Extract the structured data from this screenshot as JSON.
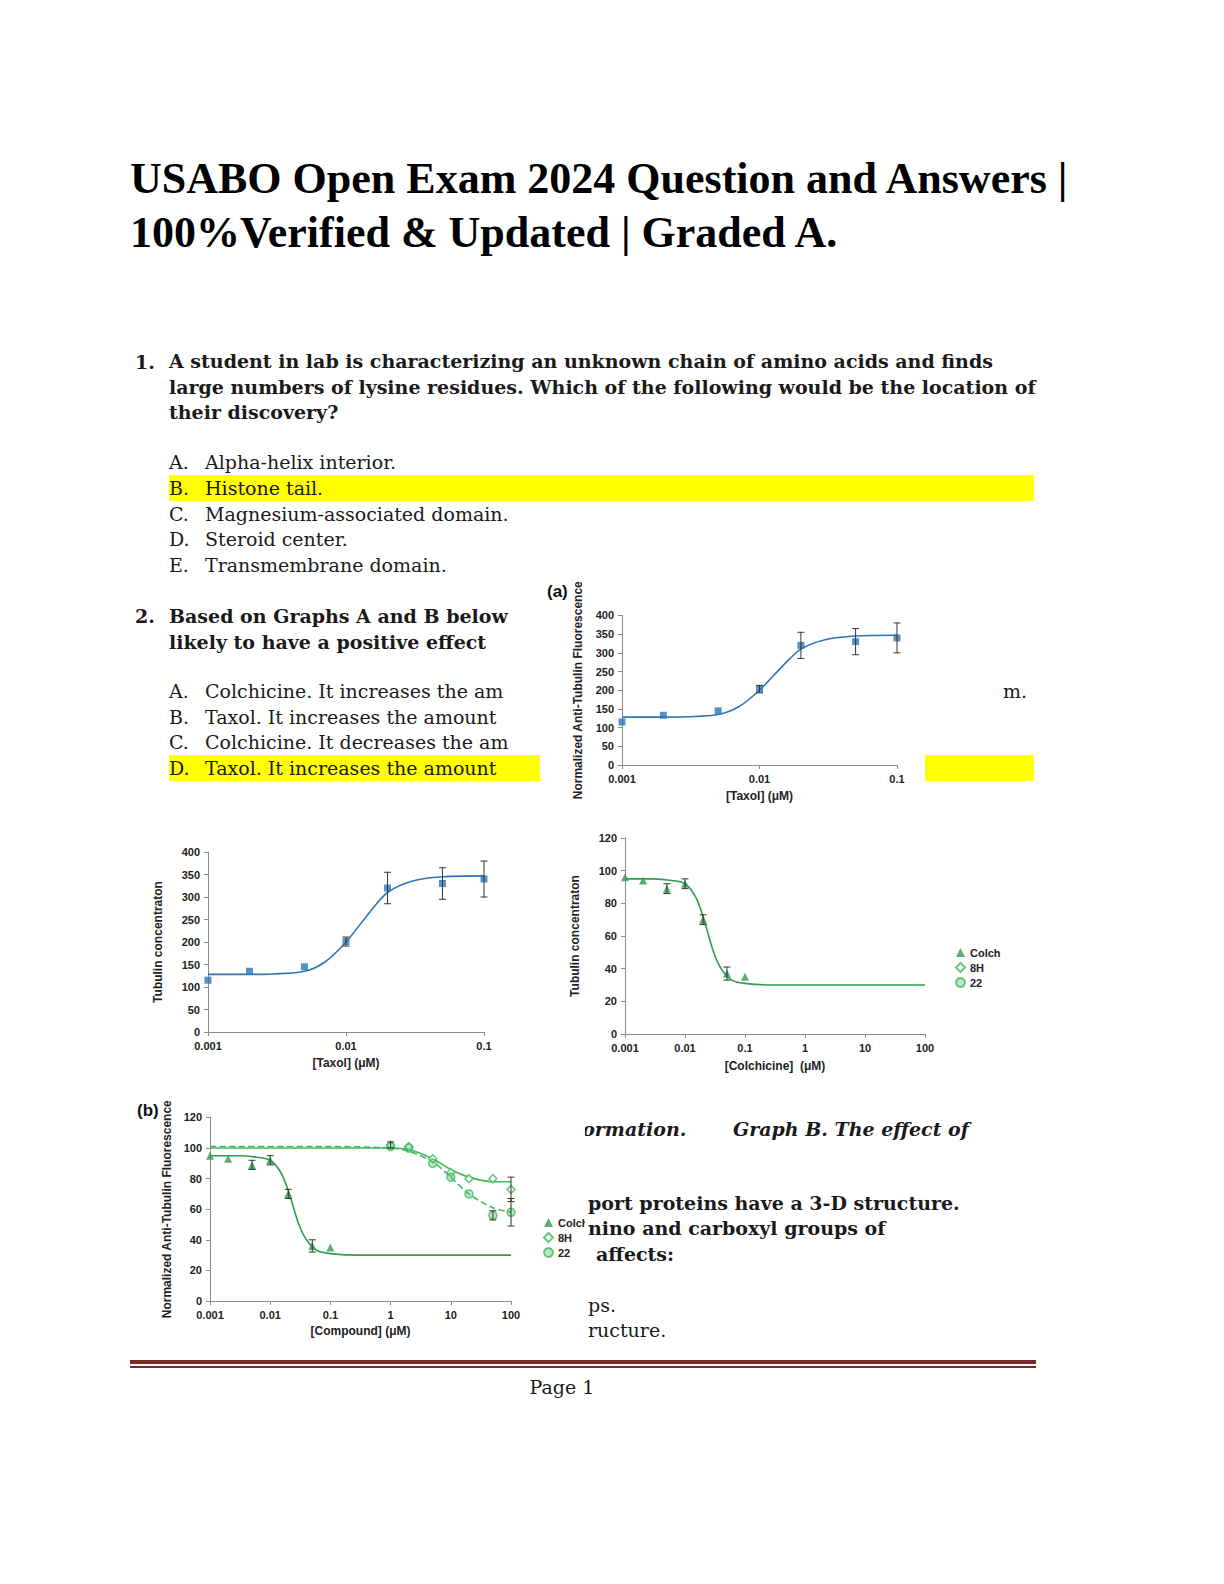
{
  "document": {
    "header": {
      "title": "USABO Open Exam 2024 Question and Answers | 100%Verified & Updated | Graded A."
    },
    "questions": [
      {
        "number": "1.",
        "text": "A student in lab is characterizing an unknown chain of amino acids and finds large numbers of lysine residues. Which of the following would be the location of their discovery?",
        "options": [
          {
            "letter": "A.",
            "text": "Alpha-helix interior."
          },
          {
            "letter": "B.",
            "text": "Histone tail."
          },
          {
            "letter": "C.",
            "text": "Magnesium-associated domain."
          },
          {
            "letter": "D.",
            "text": "Steroid center."
          },
          {
            "letter": "E.",
            "text": "Transmembrane domain."
          }
        ],
        "answer": "B."
      },
      {
        "number": "2.",
        "text_lines": [
          "Based on Graphs A and B below",
          "likely to have a positive effect"
        ],
        "options": [
          {
            "letter": "A.",
            "text": "Colchicine. It increases the am",
            "right_fragment": "m."
          },
          {
            "letter": "B.",
            "text": "Taxol. It increases the amount"
          },
          {
            "letter": "C.",
            "text": "Colchicine. It decreases the am"
          },
          {
            "letter": "D.",
            "text": "Taxol. It increases the amount"
          }
        ],
        "answer": "D."
      }
    ],
    "caption_fragments": [
      "formation.",
      "Graph B. The effect of"
    ],
    "question_3_fragments": {
      "bold": [
        "port proteins have a 3-D structure.",
        "nino and carboxyl groups of",
        "affects:"
      ],
      "regular": [
        "ps.",
        "ructure."
      ]
    },
    "footer": {
      "page": "Page 1"
    }
  },
  "chart_data": [
    {
      "type": "scatter",
      "title": "(a)",
      "x_label": "[Taxol] (μM)",
      "y_label": "Normalized Anti-Tubulin Fluorescence",
      "log": "x",
      "xlim": [
        0.001,
        0.1
      ],
      "xticks": [
        0.001,
        0.01,
        0.1
      ],
      "ylim": [
        0,
        400
      ],
      "yticks": [
        0,
        50,
        100,
        150,
        200,
        250,
        300,
        350,
        400
      ],
      "grid": false,
      "series": [
        {
          "color": "#2e75b6",
          "marker": "square",
          "x": [
            0.001,
            0.002,
            0.005,
            0.01,
            0.02,
            0.05,
            0.1
          ],
          "values": [
            115,
            133,
            145,
            203,
            320,
            330,
            340
          ],
          "errors": [
            null,
            null,
            null,
            10,
            35,
            35,
            40
          ],
          "fit": {
            "line_style": "solid",
            "x": [
              0.001,
              0.002,
              0.003,
              0.005,
              0.007,
              0.01,
              0.015,
              0.02,
              0.03,
              0.05,
              0.1
            ],
            "values": [
              128,
              128,
              129,
              135,
              155,
              200,
              268,
              310,
              335,
              345,
              347
            ]
          }
        }
      ]
    },
    {
      "type": "scatter",
      "x_label": "[Taxol] (μM)",
      "y_label": "Tubulin concentraton",
      "log": "x",
      "xlim": [
        0.001,
        0.1
      ],
      "xticks": [
        0.001,
        0.01,
        0.1
      ],
      "ylim": [
        0,
        400
      ],
      "yticks": [
        0,
        50,
        100,
        150,
        200,
        250,
        300,
        350,
        400
      ],
      "grid": false,
      "series": [
        {
          "color": "#2e75b6",
          "marker": "square",
          "x": [
            0.001,
            0.002,
            0.005,
            0.01,
            0.02,
            0.05,
            0.1
          ],
          "values": [
            115,
            135,
            145,
            201,
            320,
            330,
            340
          ],
          "errors": [
            null,
            null,
            null,
            10,
            35,
            35,
            40
          ],
          "fit": {
            "line_style": "solid",
            "x": [
              0.001,
              0.002,
              0.003,
              0.005,
              0.007,
              0.01,
              0.015,
              0.02,
              0.03,
              0.05,
              0.1
            ],
            "values": [
              128,
              128,
              129,
              135,
              155,
              200,
              268,
              310,
              335,
              345,
              347
            ]
          }
        }
      ]
    },
    {
      "type": "scatter",
      "x_label": "[Colchicine]  (μM)",
      "y_label": "Tubulin concentraton",
      "log": "x",
      "xlim": [
        0.001,
        100
      ],
      "xticks": [
        0.001,
        0.01,
        0.1,
        1,
        10,
        100
      ],
      "ylim": [
        0,
        120
      ],
      "yticks": [
        0,
        20,
        40,
        60,
        80,
        100,
        120
      ],
      "grid": false,
      "legend": "right",
      "series": [
        {
          "name": "Colch",
          "color": "#2e9e4f",
          "marker": "triangle",
          "x": [
            0.001,
            0.002,
            0.005,
            0.01,
            0.02,
            0.05,
            0.1
          ],
          "values": [
            96,
            94,
            89,
            92,
            70,
            37,
            35
          ],
          "errors": [
            null,
            null,
            3,
            3,
            3,
            4,
            null
          ],
          "fit": {
            "line_style": "solid",
            "x": [
              0.001,
              0.003,
              0.006,
              0.01,
              0.015,
              0.02,
              0.03,
              0.04,
              0.06,
              0.1,
              0.3,
              1,
              10,
              100
            ],
            "values": [
              95,
              95,
              94,
              92,
              84,
              72,
              50,
              40,
              33,
              31,
              30,
              30,
              30,
              30
            ]
          }
        },
        {
          "name": "8H",
          "color": "#45b862",
          "marker": "open_diamond",
          "x": [],
          "values": []
        },
        {
          "name": "22",
          "color": "#45b862",
          "marker": "circle",
          "x": [],
          "values": []
        }
      ]
    },
    {
      "type": "scatter",
      "title": "(b)",
      "x_label": "[Compound] (μM)",
      "y_label": "Normalized Anti-Tubulin Fluorescence",
      "log": "x",
      "xlim": [
        0.001,
        100
      ],
      "xticks": [
        0.001,
        0.01,
        0.1,
        1,
        10,
        100
      ],
      "ylim": [
        0,
        120
      ],
      "yticks": [
        0,
        20,
        40,
        60,
        80,
        100,
        120
      ],
      "grid": false,
      "legend": "right",
      "series": [
        {
          "name": "Colch",
          "color": "#2e9e4f",
          "marker": "triangle",
          "x": [
            0.001,
            0.002,
            0.005,
            0.01,
            0.02,
            0.05,
            0.1
          ],
          "values": [
            95,
            93,
            89,
            92,
            70,
            36,
            35
          ],
          "errors": [
            null,
            null,
            3,
            3,
            3,
            4,
            null
          ],
          "fit": {
            "line_style": "solid",
            "x": [
              0.001,
              0.003,
              0.006,
              0.01,
              0.015,
              0.02,
              0.03,
              0.04,
              0.06,
              0.1,
              0.3,
              1,
              10,
              100
            ],
            "values": [
              95,
              95,
              94,
              92,
              84,
              72,
              50,
              40,
              33,
              31,
              30,
              30,
              30,
              30
            ]
          }
        },
        {
          "name": "8H",
          "color": "#45b862",
          "marker": "open_diamond",
          "x": [
            1,
            2,
            5,
            10,
            20,
            50,
            100
          ],
          "values": [
            102,
            101,
            93,
            84,
            80,
            80,
            73
          ],
          "errors": [
            2,
            null,
            null,
            null,
            null,
            null,
            8
          ],
          "fit": {
            "line_style": "solid",
            "x": [
              0.001,
              0.1,
              1,
              2,
              5,
              10,
              20,
              50,
              100
            ],
            "values": [
              100,
              100,
              100,
              99,
              93,
              86,
              81,
              78,
              78
            ]
          }
        },
        {
          "name": "22",
          "color": "#45b862",
          "marker": "circle",
          "x": [
            1,
            2,
            5,
            10,
            20,
            50,
            100
          ],
          "values": [
            101,
            100,
            90,
            81,
            70,
            56,
            58
          ],
          "errors": [
            null,
            null,
            null,
            null,
            null,
            3,
            9
          ],
          "fit": {
            "line_style": "dashed",
            "x": [
              0.001,
              0.1,
              1,
              2,
              5,
              10,
              20,
              50,
              100
            ],
            "values": [
              101,
              101,
              100,
              98,
              91,
              81,
              70,
              61,
              58
            ]
          }
        }
      ]
    }
  ]
}
